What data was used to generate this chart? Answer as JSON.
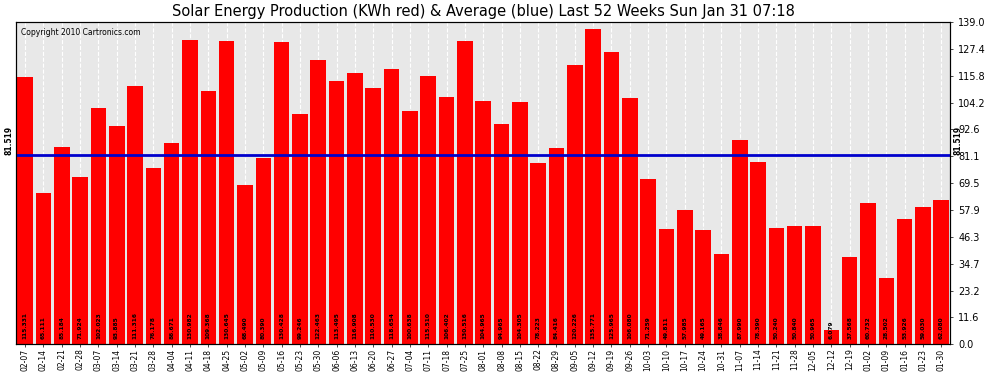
{
  "title": "Solar Energy Production (KWh red) & Average (blue) Last 52 Weeks Sun Jan 31 07:18",
  "copyright": "Copyright 2010 Cartronics.com",
  "average": 81.519,
  "bar_color": "#FF0000",
  "avg_line_color": "#0000CC",
  "background_color": "#FFFFFF",
  "plot_bg_color": "#E8E8E8",
  "grid_color": "#BBBBBB",
  "title_fontsize": 10.5,
  "labels": [
    "02-07",
    "02-14",
    "02-21",
    "02-28",
    "03-07",
    "03-14",
    "03-21",
    "03-28",
    "04-04",
    "04-11",
    "04-18",
    "04-25",
    "05-02",
    "05-09",
    "05-16",
    "05-23",
    "05-30",
    "06-06",
    "06-13",
    "06-20",
    "06-27",
    "07-04",
    "07-11",
    "07-18",
    "07-25",
    "08-01",
    "08-08",
    "08-15",
    "08-22",
    "08-29",
    "09-05",
    "09-12",
    "09-19",
    "09-26",
    "10-03",
    "10-10",
    "10-17",
    "10-24",
    "10-31",
    "11-07",
    "11-14",
    "11-21",
    "11-28",
    "12-05",
    "12-12",
    "12-19",
    "01-02",
    "01-09",
    "01-16",
    "01-23",
    "01-30"
  ],
  "values": [
    115.331,
    65.111,
    85.184,
    71.924,
    102.023,
    93.885,
    111.316,
    76.178,
    86.671,
    130.982,
    109.368,
    130.645,
    68.49,
    80.39,
    130.428,
    99.246,
    122.463,
    113.495,
    116.908,
    110.53,
    118.654,
    100.638,
    115.51,
    106.402,
    130.516,
    104.965,
    94.965,
    104.305,
    78.223,
    84.416,
    120.226,
    135.771,
    125.965,
    106.08,
    71.259,
    49.811,
    57.985,
    49.165,
    38.846,
    87.99,
    78.39,
    50.24,
    50.84,
    50.965,
    6.079,
    37.568,
    60.732,
    28.502,
    53.926,
    59.03,
    62.08
  ],
  "ylim": [
    0,
    139.0
  ],
  "yticks_right": [
    0.0,
    11.6,
    23.2,
    34.7,
    46.3,
    57.9,
    69.5,
    81.1,
    92.6,
    104.2,
    115.8,
    127.4,
    139.0
  ]
}
